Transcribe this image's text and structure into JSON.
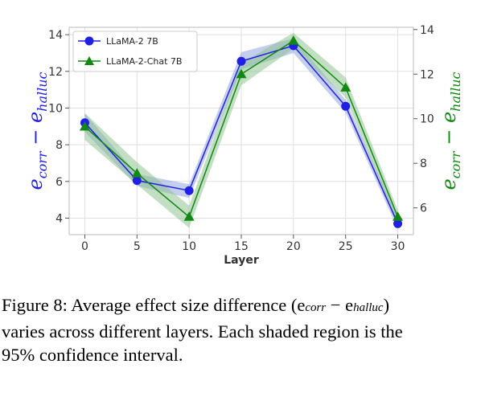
{
  "chart_data": {
    "type": "line",
    "x": [
      0,
      5,
      10,
      15,
      20,
      25,
      30
    ],
    "xlabel": "Layer",
    "xlim": [
      -1.5,
      31.5
    ],
    "xticks": [
      0,
      5,
      10,
      15,
      20,
      25,
      30
    ],
    "grid": true,
    "legend_position": "upper-left",
    "left_axis": {
      "label_main": "e",
      "label_sub1": "corr",
      "label_minus": " − ",
      "label_sub2": "halluc",
      "color": "#1f1fe6",
      "ylim": [
        3.1,
        14.4
      ],
      "ticks": [
        4,
        6,
        8,
        10,
        12,
        14
      ]
    },
    "right_axis": {
      "label_main": "e",
      "label_sub1": "corr",
      "label_minus": " − ",
      "label_sub2": "halluc",
      "color": "#118811",
      "ylim": [
        4.8,
        14.1
      ],
      "ticks": [
        6,
        8,
        10,
        12,
        14
      ]
    },
    "series": [
      {
        "name": "LLaMA-2 7B",
        "axis": "left",
        "color": "#1f1fe6",
        "band_color": "#8a9fdc",
        "marker": "circle",
        "values": [
          9.2,
          6.05,
          5.5,
          12.55,
          13.4,
          10.1,
          3.7
        ],
        "ci_lower": [
          8.7,
          5.75,
          5.1,
          12.1,
          13.0,
          9.75,
          3.4
        ],
        "ci_upper": [
          9.7,
          6.4,
          5.85,
          13.05,
          13.8,
          10.45,
          4.0
        ]
      },
      {
        "name": "LLaMA-2-Chat 7B",
        "axis": "right",
        "color": "#118811",
        "band_color": "#88c088",
        "marker": "triangle",
        "values": [
          9.65,
          7.55,
          5.6,
          12.0,
          13.5,
          11.4,
          5.6
        ],
        "ci_lower": [
          9.05,
          7.05,
          5.1,
          11.5,
          13.15,
          10.95,
          5.3
        ],
        "ci_upper": [
          10.25,
          8.05,
          6.1,
          12.5,
          13.85,
          11.85,
          5.9
        ]
      }
    ]
  },
  "caption": {
    "line1": "Figure 8: Average effect size difference (e",
    "line1_sub1": "corr",
    "line1_minus": " − e",
    "line1_sub2": "halluc",
    "line1_end": ")",
    "line2": "varies across different layers. Each shaded region is the",
    "line3": "95% confidence interval."
  }
}
